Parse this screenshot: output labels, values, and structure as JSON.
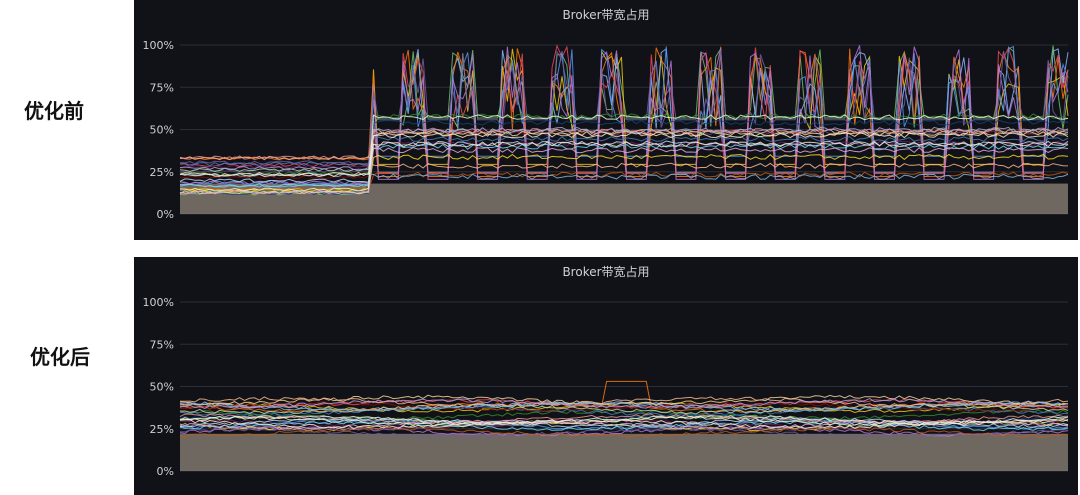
{
  "labels": {
    "before": "优化前",
    "after": "优化后"
  },
  "colors": {
    "panel_bg": "#111217",
    "grid": "#2c2e35",
    "text": "#cfd0d4"
  },
  "chart_data": [
    {
      "type": "line",
      "title": "Broker带宽占用",
      "y_ticks": [
        "100%",
        "75%",
        "50%",
        "25%",
        "0%"
      ],
      "ylim": [
        0,
        100
      ],
      "grid": true,
      "description_series_count": "many broker series",
      "series_summary": {
        "low_min": 12,
        "low_max": 35,
        "high_min": 50,
        "high_max": 100,
        "step_up_at_fraction": 0.22
      }
    },
    {
      "type": "line",
      "title": "Broker带宽占用",
      "y_ticks": [
        "100%",
        "75%",
        "50%",
        "25%",
        "0%"
      ],
      "ylim": [
        0,
        100
      ],
      "grid": true,
      "series_summary": {
        "low_min": 22,
        "low_max": 38,
        "high_min": 38,
        "high_max": 53
      }
    }
  ]
}
